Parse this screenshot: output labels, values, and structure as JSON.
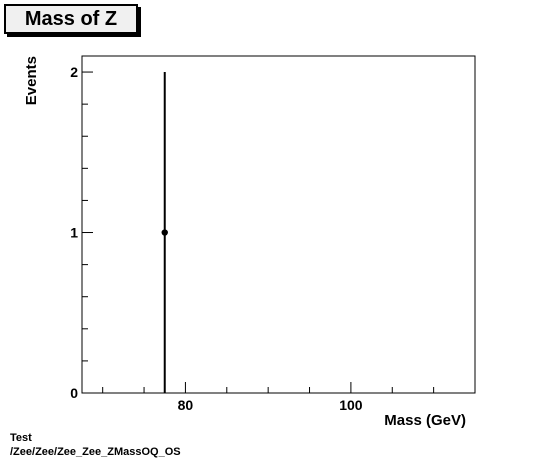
{
  "chart_data": {
    "type": "scatter",
    "title": "Mass of Z",
    "xlabel": "Mass (GeV)",
    "ylabel": "Events",
    "xlim": [
      67.5,
      115
    ],
    "ylim": [
      0,
      2.1
    ],
    "x_ticks": [
      80,
      100
    ],
    "y_ticks": [
      0,
      1,
      2
    ],
    "grid": false,
    "points": [
      {
        "x": 77.5,
        "y": 1,
        "yerr": 1
      }
    ]
  },
  "footer": {
    "line1": "Test",
    "line2": "/Zee/Zee/Zee_Zee_ZMassOQ_OS"
  }
}
